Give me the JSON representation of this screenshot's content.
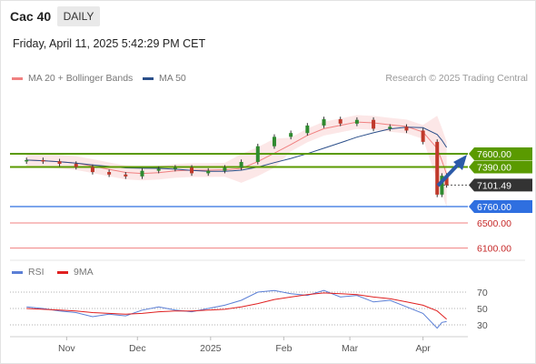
{
  "header": {
    "instrument": "Cac 40",
    "period": "DAILY"
  },
  "timestamp": "Friday, April 11, 2025 5:42:29 PM CET",
  "price_legend": [
    {
      "label": "MA 20 + Bollinger Bands",
      "color": "#f08080"
    },
    {
      "label": "MA 50",
      "color": "#2b4f8a"
    }
  ],
  "copyright": "Research © 2025 Trading Central",
  "rsi_legend": [
    {
      "label": "RSI",
      "color": "#5b7fd6"
    },
    {
      "label": "9MA",
      "color": "#e02020"
    }
  ],
  "colors": {
    "up": "#2f8a2f",
    "down": "#c0392b",
    "resistance": "#5a9a00",
    "support": "#2f6fe0",
    "target": "#f08080",
    "arrow": "#2b5aa8"
  },
  "chart_data": [
    {
      "type": "candlestick",
      "name": "price",
      "x": [
        "2024-10-15",
        "2024-10-22",
        "2024-10-29",
        "2024-11-05",
        "2024-11-12",
        "2024-11-19",
        "2024-11-26",
        "2024-12-03",
        "2024-12-10",
        "2024-12-17",
        "2024-12-24",
        "2024-12-31",
        "2025-01-07",
        "2025-01-14",
        "2025-01-21",
        "2025-01-28",
        "2025-02-04",
        "2025-02-11",
        "2025-02-18",
        "2025-02-25",
        "2025-03-04",
        "2025-03-11",
        "2025-03-18",
        "2025-03-25",
        "2025-04-01",
        "2025-04-07",
        "2025-04-09",
        "2025-04-11"
      ],
      "close": [
        7500,
        7480,
        7440,
        7390,
        7310,
        7270,
        7240,
        7330,
        7360,
        7380,
        7290,
        7330,
        7380,
        7470,
        7720,
        7870,
        7930,
        8050,
        8150,
        8080,
        8140,
        8000,
        8030,
        7970,
        7790,
        6950,
        7250,
        7101.49
      ],
      "y_ticks": [
        7600.0,
        7390.0,
        7101.49,
        6760.0,
        6500.0,
        6100.0
      ],
      "resistance_levels": [
        7600.0,
        7390.0
      ],
      "support_level": 6760.0,
      "targets": [
        6500.0,
        6100.0
      ],
      "last_price": 7101.49,
      "x_ticks": [
        "Nov",
        "Dec",
        "2025",
        "Feb",
        "Mar",
        "Apr"
      ],
      "bias": "bullish"
    },
    {
      "type": "line",
      "name": "rsi",
      "series": [
        {
          "name": "RSI",
          "values": [
            52,
            50,
            47,
            45,
            40,
            43,
            41,
            48,
            52,
            48,
            46,
            50,
            54,
            60,
            70,
            72,
            68,
            66,
            72,
            64,
            66,
            58,
            60,
            52,
            44,
            26,
            33,
            34
          ]
        },
        {
          "name": "9MA",
          "values": [
            50,
            49,
            48,
            47,
            45,
            44,
            43,
            44,
            46,
            47,
            47,
            48,
            49,
            52,
            56,
            61,
            64,
            67,
            69,
            68,
            67,
            64,
            62,
            58,
            54,
            47,
            42,
            37
          ]
        }
      ],
      "y_ticks": [
        70,
        50,
        30
      ],
      "ylim": [
        20,
        80
      ]
    }
  ]
}
